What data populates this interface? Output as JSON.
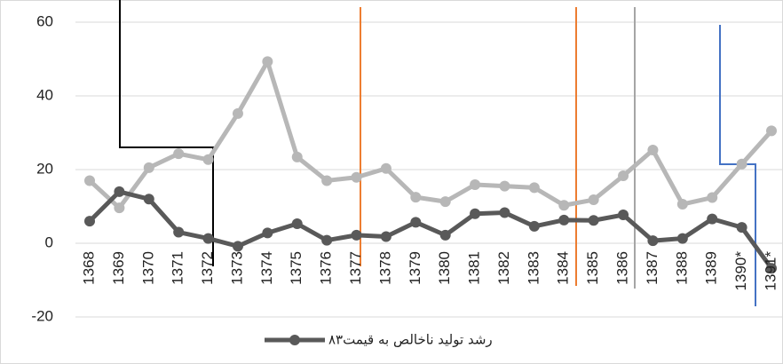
{
  "chart_data": {
    "type": "line",
    "categories": [
      "1368",
      "1369",
      "1370",
      "1371",
      "1372",
      "1373",
      "1374",
      "1375",
      "1376",
      "1377",
      "1378",
      "1379",
      "1380",
      "1381",
      "1382",
      "1383",
      "1384",
      "1385",
      "1386",
      "1387",
      "1388",
      "1389",
      "1390*",
      "1391*"
    ],
    "series": [
      {
        "name": "رشد تولید ناخالص به قیمت۸۳",
        "color": "#595959",
        "values": [
          6,
          14,
          12,
          3,
          1.3,
          -0.8,
          2.8,
          5.3,
          0.8,
          2.2,
          1.8,
          5.7,
          2.2,
          8,
          8.3,
          4.6,
          6.3,
          6.2,
          7.7,
          0.7,
          1.3,
          6.6,
          4.3,
          -6.8
        ]
      },
      {
        "color": "#b7b7b7",
        "values": [
          17,
          9.6,
          20.5,
          24.3,
          22.7,
          35.2,
          49.3,
          23.4,
          17,
          17.9,
          20.3,
          12.5,
          11.3,
          15.9,
          15.5,
          15.1,
          10.3,
          11.8,
          18.3,
          25.3,
          10.6,
          12.4,
          21.5,
          30.5
        ]
      }
    ],
    "ylim": [
      -20,
      60
    ],
    "yticks": [
      -20,
      0,
      20,
      40,
      60
    ],
    "grid": true,
    "legend": "bottom"
  }
}
